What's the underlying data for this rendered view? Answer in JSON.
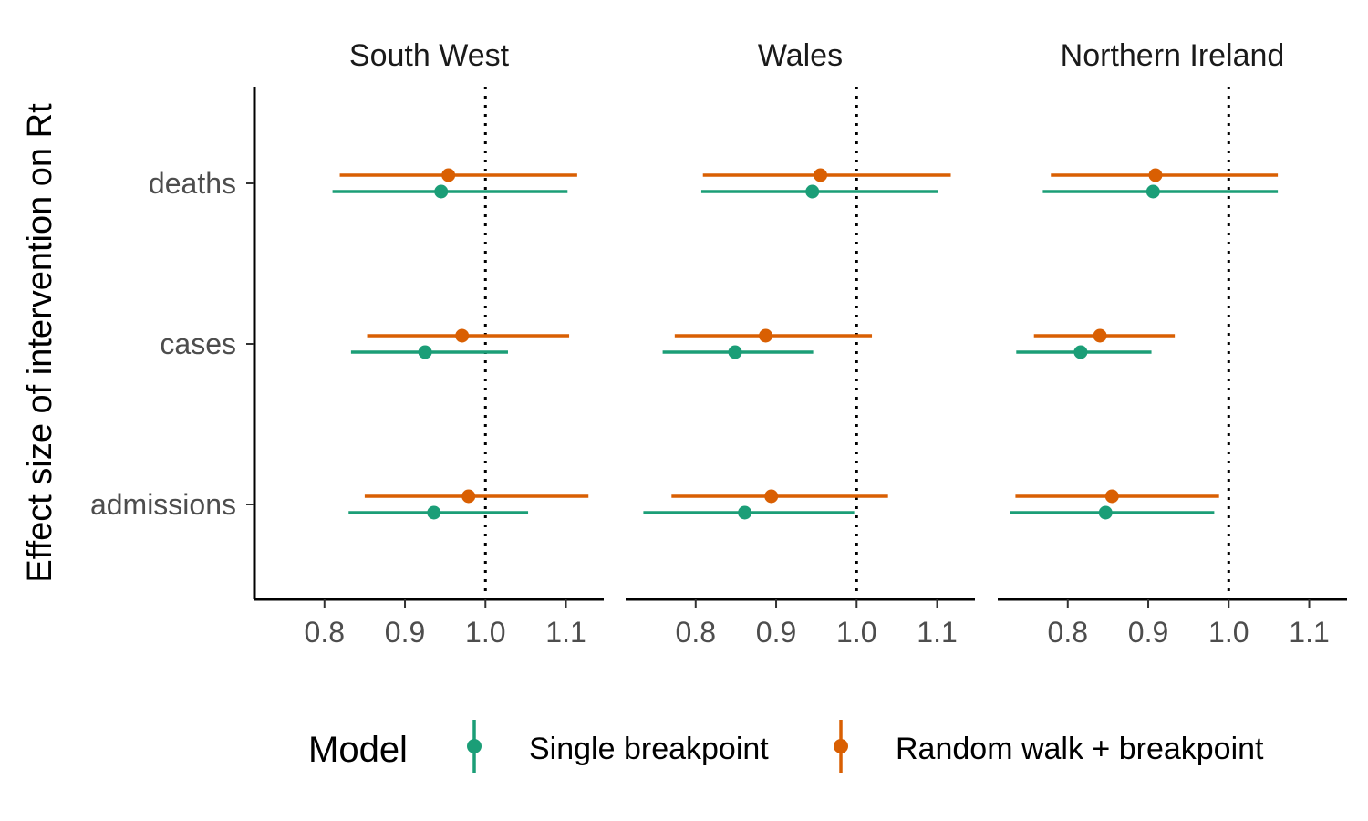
{
  "chart_data": {
    "type": "scatter",
    "subtype": "forest-plot-with-intervals",
    "ylabel": "Effect size of intervention on Rt",
    "xlabel": "",
    "xlim": [
      0.713,
      1.147
    ],
    "xticks": [
      "0.8",
      "0.9",
      "1.0",
      "1.1"
    ],
    "xtick_values": [
      0.8,
      0.9,
      1.0,
      1.1
    ],
    "reference_line": 1.0,
    "categories": [
      "deaths",
      "cases",
      "admissions"
    ],
    "facets": [
      "South West",
      "Wales",
      "Northern Ireland"
    ],
    "legend": {
      "title": "Model",
      "position": "bottom",
      "entries": [
        "Single breakpoint",
        "Random walk + breakpoint"
      ]
    },
    "series": [
      {
        "name": "Single breakpoint",
        "color": "#1b9e77",
        "data": [
          {
            "facet": "South West",
            "category": "deaths",
            "value": 0.945,
            "low": 0.81,
            "high": 1.102
          },
          {
            "facet": "South West",
            "category": "cases",
            "value": 0.925,
            "low": 0.833,
            "high": 1.028
          },
          {
            "facet": "South West",
            "category": "admissions",
            "value": 0.936,
            "low": 0.83,
            "high": 1.053
          },
          {
            "facet": "Wales",
            "category": "deaths",
            "value": 0.945,
            "low": 0.807,
            "high": 1.101
          },
          {
            "facet": "Wales",
            "category": "cases",
            "value": 0.849,
            "low": 0.759,
            "high": 0.946
          },
          {
            "facet": "Wales",
            "category": "admissions",
            "value": 0.861,
            "low": 0.735,
            "high": 0.997
          },
          {
            "facet": "Northern Ireland",
            "category": "deaths",
            "value": 0.906,
            "low": 0.769,
            "high": 1.061
          },
          {
            "facet": "Northern Ireland",
            "category": "cases",
            "value": 0.816,
            "low": 0.736,
            "high": 0.904
          },
          {
            "facet": "Northern Ireland",
            "category": "admissions",
            "value": 0.847,
            "low": 0.728,
            "high": 0.982
          }
        ]
      },
      {
        "name": "Random walk + breakpoint",
        "color": "#d95f02",
        "data": [
          {
            "facet": "South West",
            "category": "deaths",
            "value": 0.954,
            "low": 0.819,
            "high": 1.114
          },
          {
            "facet": "South West",
            "category": "cases",
            "value": 0.971,
            "low": 0.853,
            "high": 1.104
          },
          {
            "facet": "South West",
            "category": "admissions",
            "value": 0.979,
            "low": 0.85,
            "high": 1.128
          },
          {
            "facet": "Wales",
            "category": "deaths",
            "value": 0.955,
            "low": 0.809,
            "high": 1.117
          },
          {
            "facet": "Wales",
            "category": "cases",
            "value": 0.887,
            "low": 0.774,
            "high": 1.019
          },
          {
            "facet": "Wales",
            "category": "admissions",
            "value": 0.894,
            "low": 0.77,
            "high": 1.039
          },
          {
            "facet": "Northern Ireland",
            "category": "deaths",
            "value": 0.909,
            "low": 0.779,
            "high": 1.061
          },
          {
            "facet": "Northern Ireland",
            "category": "cases",
            "value": 0.84,
            "low": 0.758,
            "high": 0.933
          },
          {
            "facet": "Northern Ireland",
            "category": "admissions",
            "value": 0.855,
            "low": 0.735,
            "high": 0.988
          }
        ]
      }
    ]
  }
}
